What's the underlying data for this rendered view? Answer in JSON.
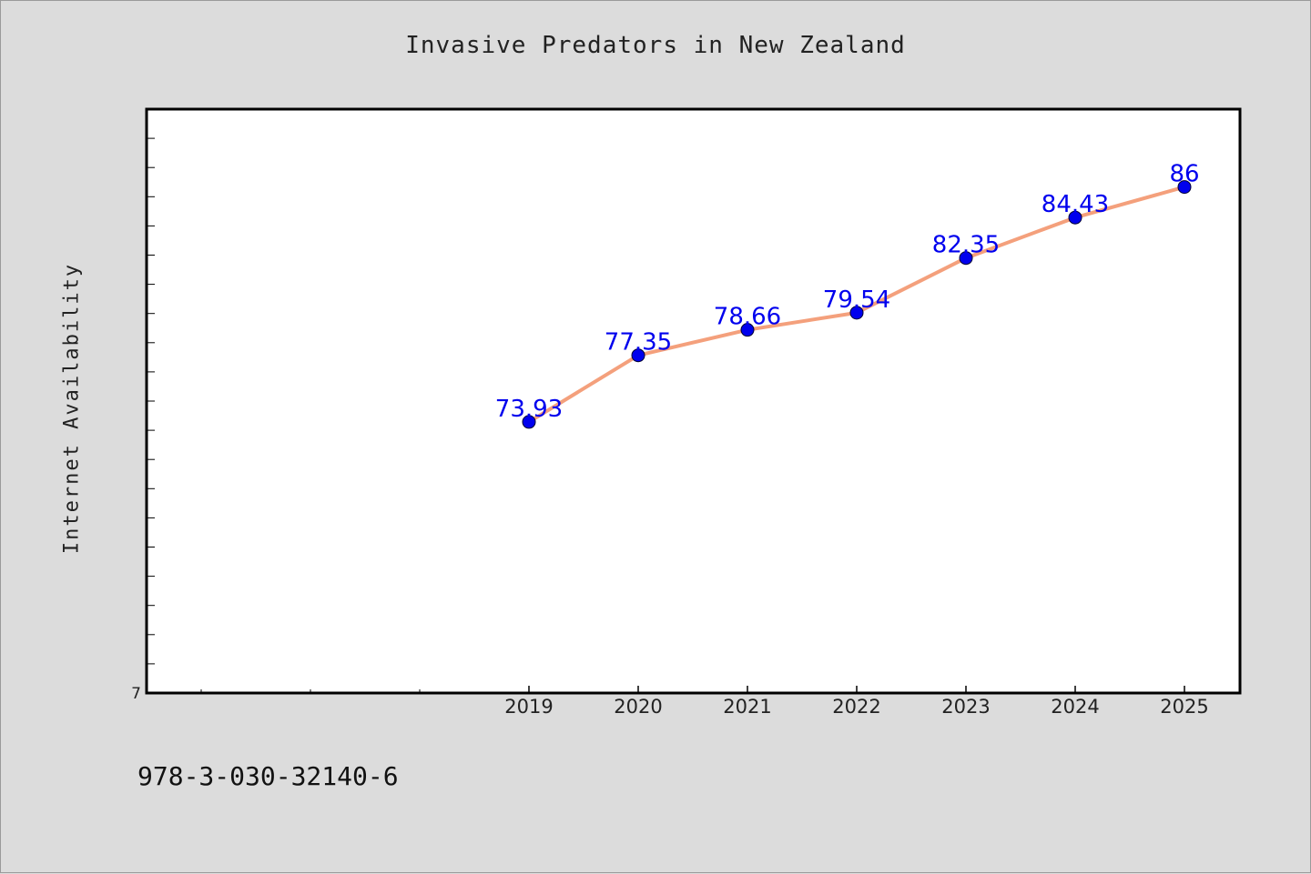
{
  "chart_data": {
    "type": "line",
    "title": "Invasive Predators in New Zealand",
    "xlabel": "",
    "ylabel": "Internet Availability",
    "categories": [
      "2019",
      "2020",
      "2021",
      "2022",
      "2023",
      "2024",
      "2025"
    ],
    "series": [
      {
        "values": [
          73.93,
          77.35,
          78.66,
          79.54,
          82.35,
          84.43,
          86
        ]
      }
    ],
    "data_labels": [
      "73.93",
      "77.35",
      "78.66",
      "79.54",
      "82.35",
      "84.43",
      "86"
    ],
    "y_tick_labels": [
      "7"
    ],
    "ylim": [
      60,
      90
    ],
    "x_extra_slots": 3,
    "grid": false,
    "legend": "none",
    "colors": {
      "line": "#f4a07c",
      "marker": "#0000ee",
      "label": "#0000ee",
      "axes": "#000000",
      "background": "#dcdcdc",
      "plot_background": "#ffffff"
    }
  },
  "footer": {
    "isbn": "978-3-030-32140-6"
  }
}
